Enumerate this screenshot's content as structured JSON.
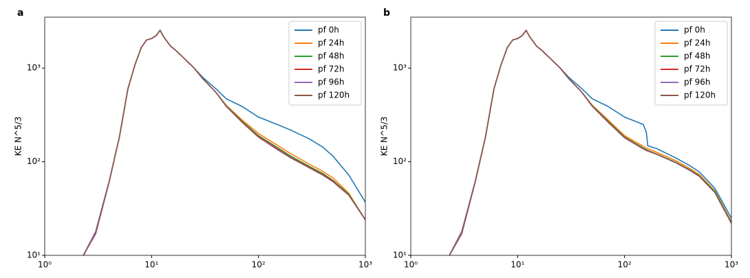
{
  "chart_data": [
    {
      "type": "line",
      "panel_label": "a",
      "ylabel": "KE N^5/3",
      "xscale": "log",
      "yscale": "log",
      "legend": "upper right",
      "xlim": [
        1,
        1000
      ],
      "ylim": [
        10,
        3500
      ],
      "xticks": [
        {
          "value": 1,
          "label": "10⁰"
        },
        {
          "value": 10,
          "label": "10¹"
        },
        {
          "value": 100,
          "label": "10²"
        },
        {
          "value": 1000,
          "label": "10³"
        }
      ],
      "yticks": [
        {
          "value": 10,
          "label": "10¹"
        },
        {
          "value": 100,
          "label": "10²"
        },
        {
          "value": 1000,
          "label": "10³"
        }
      ],
      "x": [
        2.3,
        3,
        4,
        5,
        6,
        7,
        8,
        9,
        10,
        11,
        12,
        13,
        15,
        17,
        20,
        25,
        30,
        40,
        50,
        70,
        100,
        150,
        200,
        300,
        400,
        500,
        700,
        1000
      ],
      "series": [
        {
          "name": "pf 0h",
          "color": "#1f77b4",
          "values": [
            10,
            18,
            61,
            184,
            600,
            1090,
            1660,
            2000,
            2070,
            2220,
            2530,
            2150,
            1720,
            1530,
            1280,
            1000,
            800,
            600,
            470,
            390,
            300,
            250,
            218,
            175,
            143,
            114,
            72,
            37
          ]
        },
        {
          "name": "pf 24h",
          "color": "#ff7f0e",
          "values": [
            10,
            18,
            61,
            184,
            600,
            1090,
            1660,
            2000,
            2070,
            2220,
            2530,
            2150,
            1720,
            1530,
            1280,
            1000,
            775,
            550,
            400,
            280,
            200,
            150,
            122,
            94,
            79,
            67,
            46,
            24
          ]
        },
        {
          "name": "pf 48h",
          "color": "#2ca02c",
          "values": [
            10,
            18,
            61,
            184,
            600,
            1090,
            1660,
            2000,
            2070,
            2220,
            2530,
            2150,
            1720,
            1530,
            1280,
            1000,
            775,
            550,
            395,
            272,
            190,
            142,
            115,
            89,
            75,
            63,
            45,
            24
          ]
        },
        {
          "name": "pf 72h",
          "color": "#d62728",
          "values": [
            10,
            18,
            61,
            184,
            600,
            1090,
            1660,
            2000,
            2070,
            2220,
            2530,
            2150,
            1720,
            1530,
            1280,
            1000,
            775,
            550,
            392,
            268,
            186,
            139,
            112,
            87,
            73,
            62,
            44,
            24
          ]
        },
        {
          "name": "pf 96h",
          "color": "#9467bd",
          "values": [
            10,
            18,
            61,
            184,
            600,
            1090,
            1660,
            2000,
            2070,
            2220,
            2530,
            2150,
            1720,
            1530,
            1280,
            1000,
            775,
            550,
            390,
            266,
            184,
            137,
            111,
            86,
            72,
            61,
            44,
            24
          ]
        },
        {
          "name": "pf 120h",
          "color": "#8c564b",
          "values": [
            10,
            17,
            60,
            184,
            600,
            1090,
            1660,
            2000,
            2070,
            2220,
            2530,
            2150,
            1720,
            1530,
            1280,
            1000,
            775,
            550,
            390,
            265,
            183,
            135,
            110,
            86,
            72,
            61,
            44,
            24
          ]
        }
      ]
    },
    {
      "type": "line",
      "panel_label": "b",
      "ylabel": "KE N^5/3",
      "xscale": "log",
      "yscale": "log",
      "legend": "upper right",
      "xlim": [
        1,
        1000
      ],
      "ylim": [
        10,
        3500
      ],
      "xticks": [
        {
          "value": 1,
          "label": "10⁰"
        },
        {
          "value": 10,
          "label": "10¹"
        },
        {
          "value": 100,
          "label": "10²"
        },
        {
          "value": 1000,
          "label": "10³"
        }
      ],
      "yticks": [
        {
          "value": 10,
          "label": "10¹"
        },
        {
          "value": 100,
          "label": "10²"
        },
        {
          "value": 1000,
          "label": "10³"
        }
      ],
      "x": [
        2.3,
        3,
        4,
        5,
        6,
        7,
        8,
        9,
        10,
        11,
        12,
        13,
        15,
        17,
        20,
        25,
        30,
        40,
        50,
        70,
        100,
        150,
        160,
        165,
        200,
        300,
        400,
        500,
        700,
        1000
      ],
      "series": [
        {
          "name": "pf 0h",
          "color": "#1f77b4",
          "values": [
            10,
            18,
            61,
            184,
            600,
            1090,
            1660,
            2000,
            2070,
            2220,
            2530,
            2150,
            1720,
            1530,
            1280,
            1000,
            800,
            600,
            470,
            390,
            300,
            250,
            206,
            148,
            138,
            110,
            92,
            78,
            52,
            25
          ]
        },
        {
          "name": "pf 24h",
          "color": "#ff7f0e",
          "values": [
            10,
            18,
            61,
            184,
            600,
            1090,
            1660,
            2000,
            2070,
            2220,
            2530,
            2150,
            1720,
            1530,
            1280,
            1000,
            775,
            550,
            400,
            280,
            190,
            146,
            140,
            138,
            126,
            103,
            86,
            73,
            49,
            23
          ]
        },
        {
          "name": "pf 48h",
          "color": "#2ca02c",
          "values": [
            10,
            18,
            61,
            184,
            600,
            1090,
            1660,
            2000,
            2070,
            2220,
            2530,
            2150,
            1720,
            1530,
            1280,
            1000,
            775,
            550,
            395,
            272,
            184,
            140,
            135,
            132,
            121,
            99,
            83,
            71,
            48,
            22.5
          ]
        },
        {
          "name": "pf 72h",
          "color": "#d62728",
          "values": [
            10,
            18,
            61,
            184,
            600,
            1090,
            1660,
            2000,
            2070,
            2220,
            2530,
            2150,
            1720,
            1530,
            1280,
            1000,
            775,
            550,
            392,
            268,
            182,
            138,
            133,
            131,
            120,
            98,
            82,
            70,
            47,
            22
          ]
        },
        {
          "name": "pf 96h",
          "color": "#9467bd",
          "values": [
            10,
            18,
            61,
            184,
            600,
            1090,
            1660,
            2000,
            2070,
            2220,
            2530,
            2150,
            1720,
            1530,
            1280,
            1000,
            775,
            550,
            390,
            266,
            181,
            137,
            132,
            130,
            120,
            98,
            82,
            70,
            47,
            22
          ]
        },
        {
          "name": "pf 120h",
          "color": "#8c564b",
          "values": [
            10,
            17,
            60,
            184,
            600,
            1090,
            1660,
            2000,
            2070,
            2220,
            2530,
            2150,
            1720,
            1530,
            1280,
            1000,
            775,
            550,
            390,
            265,
            180,
            137,
            132,
            130,
            120,
            98,
            82,
            70,
            47,
            22
          ]
        }
      ]
    }
  ]
}
